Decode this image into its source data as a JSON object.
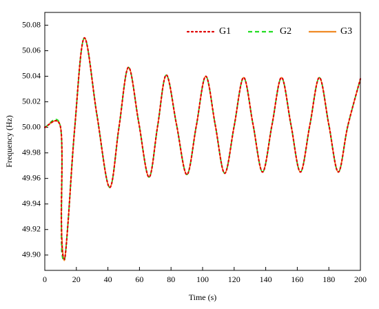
{
  "chart_data": {
    "type": "line",
    "xlabel": "Time (s)",
    "ylabel": "Frequency (Hz)",
    "x": [
      0,
      10,
      10.5,
      11,
      12,
      13,
      15,
      19,
      25,
      33,
      41,
      47,
      53,
      59.5,
      66,
      71.5,
      77,
      83.5,
      90,
      96,
      102,
      108,
      114,
      120,
      126,
      132,
      138,
      144,
      150,
      156,
      162,
      168,
      174,
      180,
      186,
      192,
      200
    ],
    "series": [
      {
        "name": "G1",
        "color": "#e00000",
        "dash": "dotted",
        "values": [
          50.0,
          50.0,
          49.93,
          49.905,
          49.898,
          49.9,
          49.93,
          50.0,
          50.07,
          50.01,
          49.953,
          50.0,
          50.047,
          50.004,
          49.961,
          50.001,
          50.041,
          50.002,
          49.963,
          50.001,
          50.04,
          50.002,
          49.964,
          50.001,
          50.039,
          50.002,
          49.965,
          50.002,
          50.039,
          50.002,
          49.965,
          50.002,
          50.039,
          50.002,
          49.965,
          50.001,
          50.038
        ]
      },
      {
        "name": "G2",
        "color": "#22dd22",
        "dash": "dashed",
        "values": [
          50.0,
          50.0,
          49.915,
          49.9,
          49.896,
          49.9,
          49.93,
          50.0,
          50.07,
          50.01,
          49.953,
          50.0,
          50.047,
          50.004,
          49.961,
          50.001,
          50.041,
          50.002,
          49.963,
          50.001,
          50.04,
          50.002,
          49.964,
          50.001,
          50.039,
          50.002,
          49.965,
          50.002,
          50.039,
          50.002,
          49.965,
          50.002,
          50.039,
          50.002,
          49.965,
          50.001,
          50.038
        ]
      },
      {
        "name": "G3",
        "color": "#f08a24",
        "dash": "solid",
        "values": [
          50.0,
          50.0,
          49.93,
          49.91,
          49.897,
          49.9,
          49.93,
          50.0,
          50.07,
          50.01,
          49.953,
          50.0,
          50.047,
          50.004,
          49.961,
          50.001,
          50.041,
          50.002,
          49.963,
          50.001,
          50.04,
          50.002,
          49.964,
          50.001,
          50.039,
          50.002,
          49.965,
          50.002,
          50.039,
          50.002,
          49.965,
          50.002,
          50.039,
          50.002,
          49.965,
          50.001,
          50.038
        ]
      }
    ],
    "xlim": [
      0,
      200
    ],
    "xticks": [
      0,
      20,
      40,
      60,
      80,
      100,
      120,
      140,
      160,
      180,
      200
    ],
    "ylim": [
      49.888,
      50.09
    ],
    "yticks": [
      {
        "value": 49.9,
        "label": "49.90"
      },
      49.92,
      49.94,
      49.96,
      49.98,
      {
        "value": 50.0,
        "label": "50.00"
      },
      50.02,
      50.04,
      50.06,
      50.08
    ],
    "legend": "top-right"
  }
}
